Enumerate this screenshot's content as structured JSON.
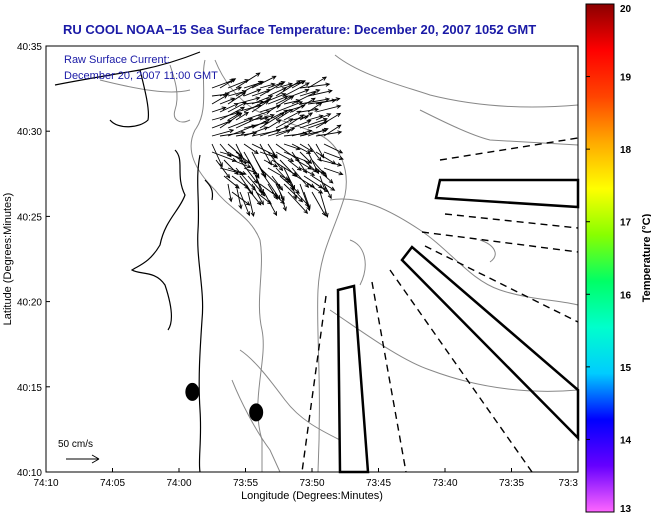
{
  "chart_data": {
    "type": "map",
    "title": "RU COOL  NOAA−15  Sea Surface Temperature:  December 20, 2007 1052 GMT",
    "annotation_lines": [
      "Raw Surface Current:",
      "December 20, 2007 11:00 GMT"
    ],
    "xlabel": "Longitude (Degrees:Minutes)",
    "ylabel": "Latitude (Degrees:Minutes)",
    "x_ticks": [
      "74:10",
      "74:05",
      "74:00",
      "73:55",
      "73:50",
      "73:45",
      "73:40",
      "73:35",
      "73:3"
    ],
    "y_ticks": [
      "40:35",
      "40:30",
      "40:25",
      "40:20",
      "40:15",
      "40:10"
    ],
    "xlim_min": [
      -74.1667,
      -73.5
    ],
    "ylim_min": [
      40.1667,
      40.5833
    ],
    "scale_label": "50 cm/s",
    "colorbar": {
      "label": "Temperature (°C)",
      "ticks": [
        20,
        19,
        18,
        17,
        16,
        15,
        14,
        13
      ],
      "range": [
        13,
        20
      ],
      "colors": [
        "#ff66ff",
        "#6600ff",
        "#0000ff",
        "#00ccff",
        "#00ffcc",
        "#00ff66",
        "#88ff00",
        "#ffff00",
        "#ffaa00",
        "#ff4400",
        "#ff0000",
        "#8b0000"
      ]
    },
    "buoys": [
      {
        "lon": -73.9833,
        "lat": 40.245
      },
      {
        "lon": -73.9033,
        "lat": 40.225
      }
    ]
  }
}
